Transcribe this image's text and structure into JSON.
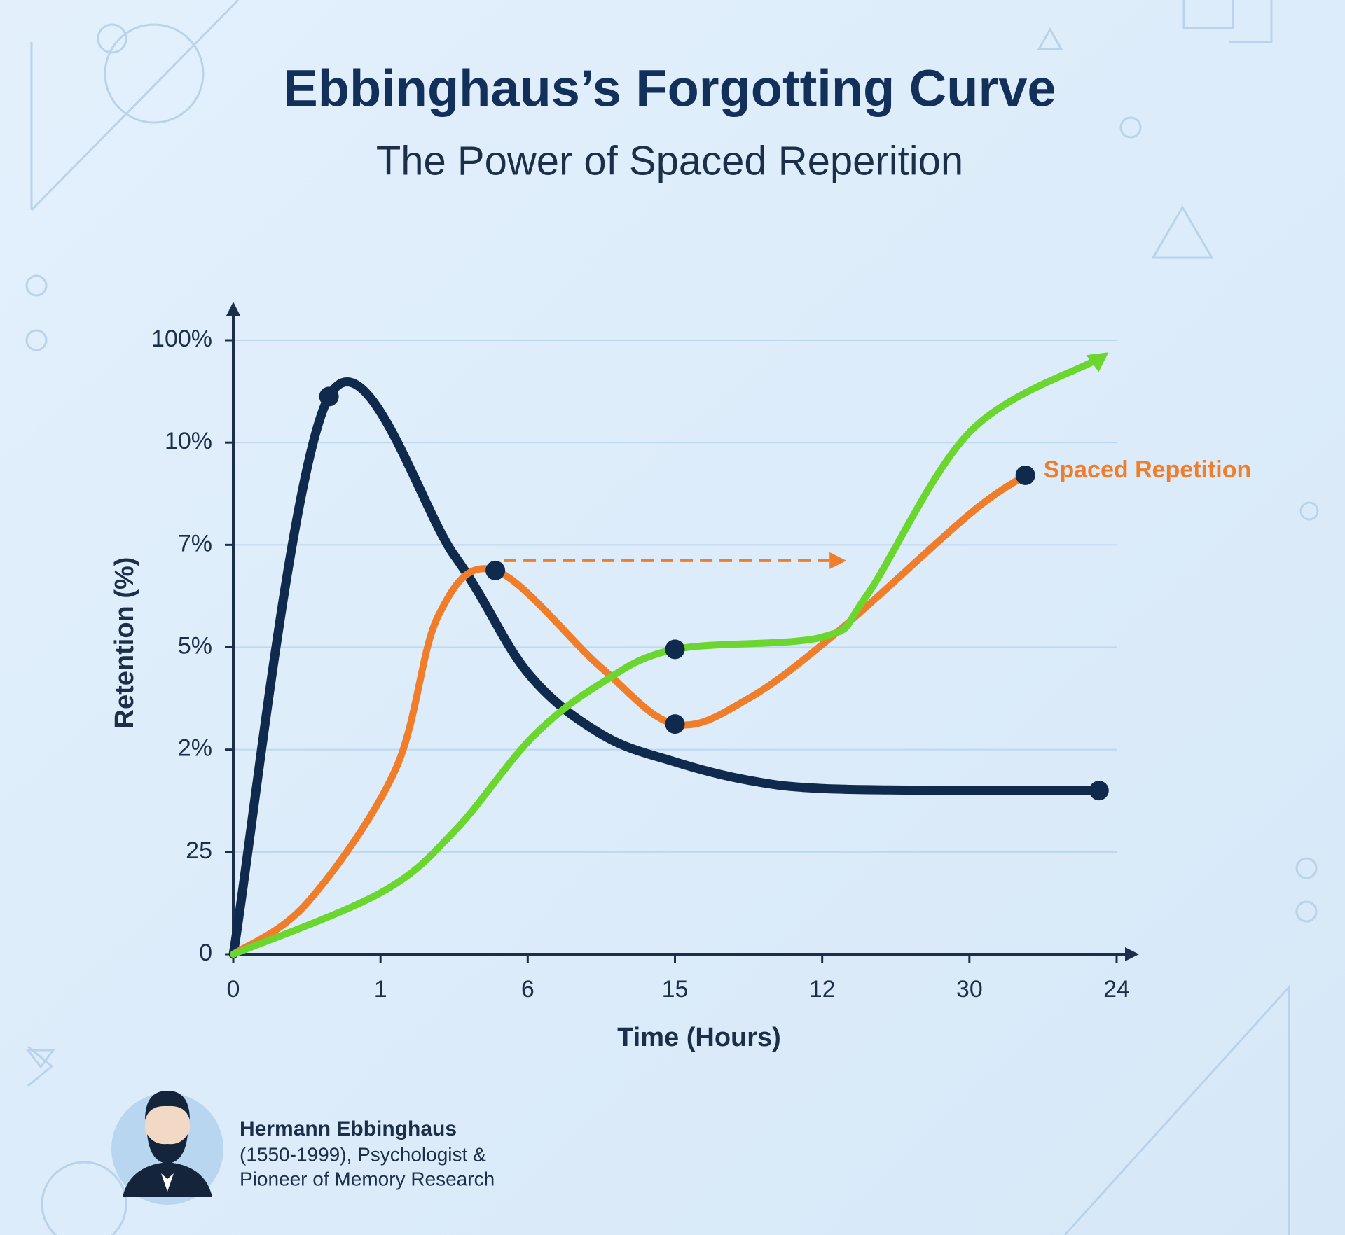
{
  "chart_data": {
    "type": "line",
    "title": "Ebbinghaus’s Forgotting Curve",
    "subtitle": "The Power of Spaced Reperition",
    "x_label": "Time (Hours)",
    "y_label": "Retention (%)",
    "categories": [
      "0",
      "1",
      "6",
      "15",
      "12",
      "30",
      "24"
    ],
    "xlim": [
      0,
      6
    ],
    "ylim": [
      0,
      6
    ],
    "yticks": [
      {
        "value": 0,
        "label": "0"
      },
      {
        "value": 1,
        "label": "25"
      },
      {
        "value": 2,
        "label": "2%"
      },
      {
        "value": 3,
        "label": "5%"
      },
      {
        "value": 4,
        "label": "7%"
      },
      {
        "value": 5,
        "label": "10%"
      },
      {
        "value": 6,
        "label": "100%"
      }
    ],
    "grid": true,
    "series": [
      {
        "color": "#0f2a4d",
        "x": [
          0,
          0.65,
          1.5,
          2,
          2.5,
          3,
          3.5,
          4,
          5,
          5.88
        ],
        "values": [
          0,
          5.45,
          3.9,
          2.75,
          2.15,
          1.88,
          1.7,
          1.62,
          1.6,
          1.6
        ]
      },
      {
        "name": "Spaced Repetition",
        "color": "#f07d2a",
        "x": [
          0,
          0.5,
          1.1,
          1.39,
          1.78,
          2.5,
          3,
          3.5,
          4.12,
          5,
          5.38
        ],
        "values": [
          0,
          0.5,
          1.8,
          3.3,
          3.75,
          2.8,
          2.25,
          2.5,
          3.17,
          4.3,
          4.68
        ]
      },
      {
        "color": "#6bd62e",
        "x": [
          0,
          1,
          1.5,
          2.03,
          2.5,
          3,
          4,
          4.3,
          5,
          5.85
        ],
        "values": [
          0,
          0.6,
          1.2,
          2.12,
          2.65,
          2.98,
          3.1,
          3.5,
          5.1,
          5.8
        ]
      }
    ]
  },
  "footer": {
    "name": "Hermann Ebbinghaus",
    "line1": "(1550-1999), Psychologist &",
    "line2": "Pioneer of Memory Research"
  }
}
